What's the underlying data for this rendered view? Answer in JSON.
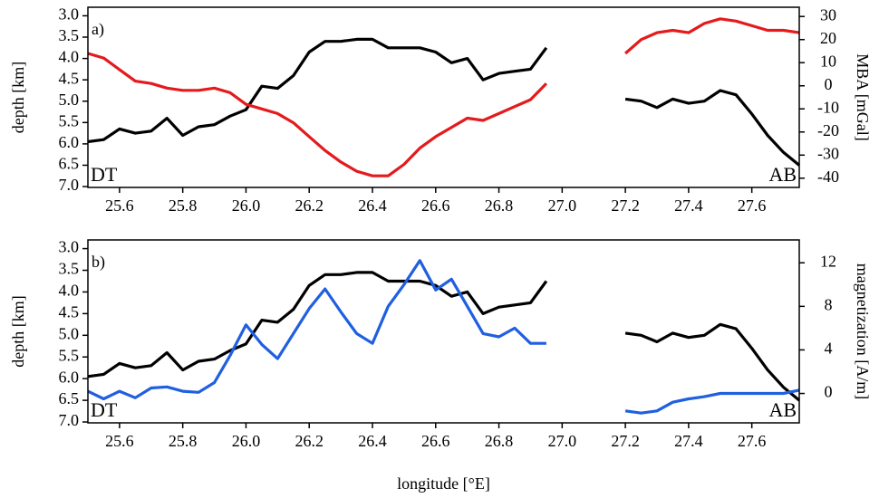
{
  "chart_data": [
    {
      "type": "line",
      "panel_label": "a)",
      "annotations": [
        "DT",
        "AB"
      ],
      "ylabel": "depth [km]",
      "y2label": "MBA [mGal]",
      "x": [
        25.5,
        25.55,
        25.6,
        25.65,
        25.7,
        25.75,
        25.8,
        25.85,
        25.9,
        25.95,
        26.0,
        26.05,
        26.1,
        26.15,
        26.2,
        26.25,
        26.3,
        26.35,
        26.4,
        26.45,
        26.5,
        26.55,
        26.6,
        26.65,
        26.7,
        26.75,
        26.8,
        26.85,
        26.9,
        26.95,
        27.08,
        27.2,
        27.25,
        27.3,
        27.35,
        27.4,
        27.45,
        27.5,
        27.55,
        27.6,
        27.65,
        27.7,
        27.75
      ],
      "series": [
        {
          "color": "#000000",
          "values": [
            5.95,
            5.9,
            5.65,
            5.75,
            5.7,
            5.4,
            5.8,
            5.6,
            5.55,
            5.35,
            5.2,
            4.65,
            4.7,
            4.4,
            3.85,
            3.6,
            3.6,
            3.55,
            3.55,
            3.75,
            3.75,
            3.75,
            3.85,
            4.1,
            4.0,
            4.5,
            4.35,
            4.3,
            4.25,
            3.75,
            null,
            4.95,
            5.0,
            5.15,
            4.95,
            5.05,
            5.0,
            4.75,
            4.85,
            5.3,
            5.8,
            6.2,
            6.5
          ]
        },
        {
          "color": "#e41a1c",
          "axis": "y2",
          "values": [
            14,
            12,
            7,
            2,
            1,
            -1,
            -2,
            -2,
            -1,
            -3,
            -8,
            -10,
            -12,
            -16,
            -22,
            -28,
            -33,
            -37,
            -39,
            -39,
            -34,
            -27,
            -22,
            -18,
            -14,
            -15,
            -12,
            -9,
            -6,
            1,
            null,
            14,
            20,
            23,
            24,
            23,
            27,
            29,
            28,
            26,
            24,
            24,
            23
          ]
        }
      ],
      "xlim": [
        25.5,
        27.75
      ],
      "xticks": [
        25.6,
        25.8,
        {
          "value": 26,
          "label": "26.0"
        },
        26.2,
        26.4,
        26.6,
        26.8,
        {
          "value": 27,
          "label": "27.0"
        },
        27.2,
        27.4,
        27.6
      ],
      "ylim": [
        7.02,
        2.8
      ],
      "yticks": [
        {
          "value": 3,
          "label": "3.0"
        },
        3.5,
        {
          "value": 4,
          "label": "4.0"
        },
        4.5,
        {
          "value": 5,
          "label": "5.0"
        },
        5.5,
        {
          "value": 6,
          "label": "6.0"
        },
        6.5,
        {
          "value": 7,
          "label": "7.0"
        }
      ],
      "y2lim": [
        -44,
        34
      ],
      "y2ticks": [
        30,
        20,
        10,
        0,
        -10,
        -20,
        -30,
        -40
      ]
    },
    {
      "type": "line",
      "panel_label": "b)",
      "annotations": [
        "DT",
        "AB"
      ],
      "ylabel": "depth [km]",
      "y2label": "magnetization [A/m]",
      "xlabel": "longitude [°E]",
      "x": [
        25.5,
        25.55,
        25.6,
        25.65,
        25.7,
        25.75,
        25.8,
        25.85,
        25.9,
        25.95,
        26.0,
        26.05,
        26.1,
        26.15,
        26.2,
        26.25,
        26.3,
        26.35,
        26.4,
        26.45,
        26.5,
        26.55,
        26.6,
        26.65,
        26.7,
        26.75,
        26.8,
        26.85,
        26.9,
        26.95,
        27.08,
        27.2,
        27.25,
        27.3,
        27.35,
        27.4,
        27.45,
        27.5,
        27.55,
        27.6,
        27.65,
        27.7,
        27.75
      ],
      "series": [
        {
          "color": "#000000",
          "values": [
            5.95,
            5.9,
            5.65,
            5.75,
            5.7,
            5.4,
            5.8,
            5.6,
            5.55,
            5.35,
            5.2,
            4.65,
            4.7,
            4.4,
            3.85,
            3.6,
            3.6,
            3.55,
            3.55,
            3.75,
            3.75,
            3.75,
            3.85,
            4.1,
            4.0,
            4.5,
            4.35,
            4.3,
            4.25,
            3.75,
            null,
            4.95,
            5.0,
            5.15,
            4.95,
            5.05,
            5.0,
            4.75,
            4.85,
            5.3,
            5.8,
            6.2,
            6.5
          ]
        },
        {
          "color": "#1f5fe0",
          "axis": "y2",
          "values": [
            0.2,
            -0.5,
            0.2,
            -0.4,
            0.5,
            0.6,
            0.2,
            0.1,
            1.0,
            3.5,
            6.3,
            4.5,
            3.2,
            5.5,
            7.8,
            9.6,
            7.5,
            5.5,
            4.6,
            8.0,
            10.0,
            12.2,
            9.5,
            10.5,
            8.0,
            5.5,
            5.2,
            6.0,
            4.6,
            4.6,
            null,
            -1.6,
            -1.8,
            -1.6,
            -0.8,
            -0.5,
            -0.3,
            0,
            0,
            0,
            0,
            0,
            0.3
          ]
        }
      ],
      "xlim": [
        25.5,
        27.75
      ],
      "xticks": [
        25.6,
        25.8,
        {
          "value": 26,
          "label": "26.0"
        },
        26.2,
        26.4,
        26.6,
        26.8,
        {
          "value": 27,
          "label": "27.0"
        },
        27.2,
        27.4,
        27.6
      ],
      "ylim": [
        7.02,
        2.8
      ],
      "yticks": [
        {
          "value": 3,
          "label": "3.0"
        },
        3.5,
        {
          "value": 4,
          "label": "4.0"
        },
        4.5,
        {
          "value": 5,
          "label": "5.0"
        },
        5.5,
        {
          "value": 6,
          "label": "6.0"
        },
        6.5,
        {
          "value": 7,
          "label": "7.0"
        }
      ],
      "y2lim": [
        -2.7,
        14.1
      ],
      "y2ticks": [
        0,
        4,
        8,
        12
      ]
    }
  ]
}
